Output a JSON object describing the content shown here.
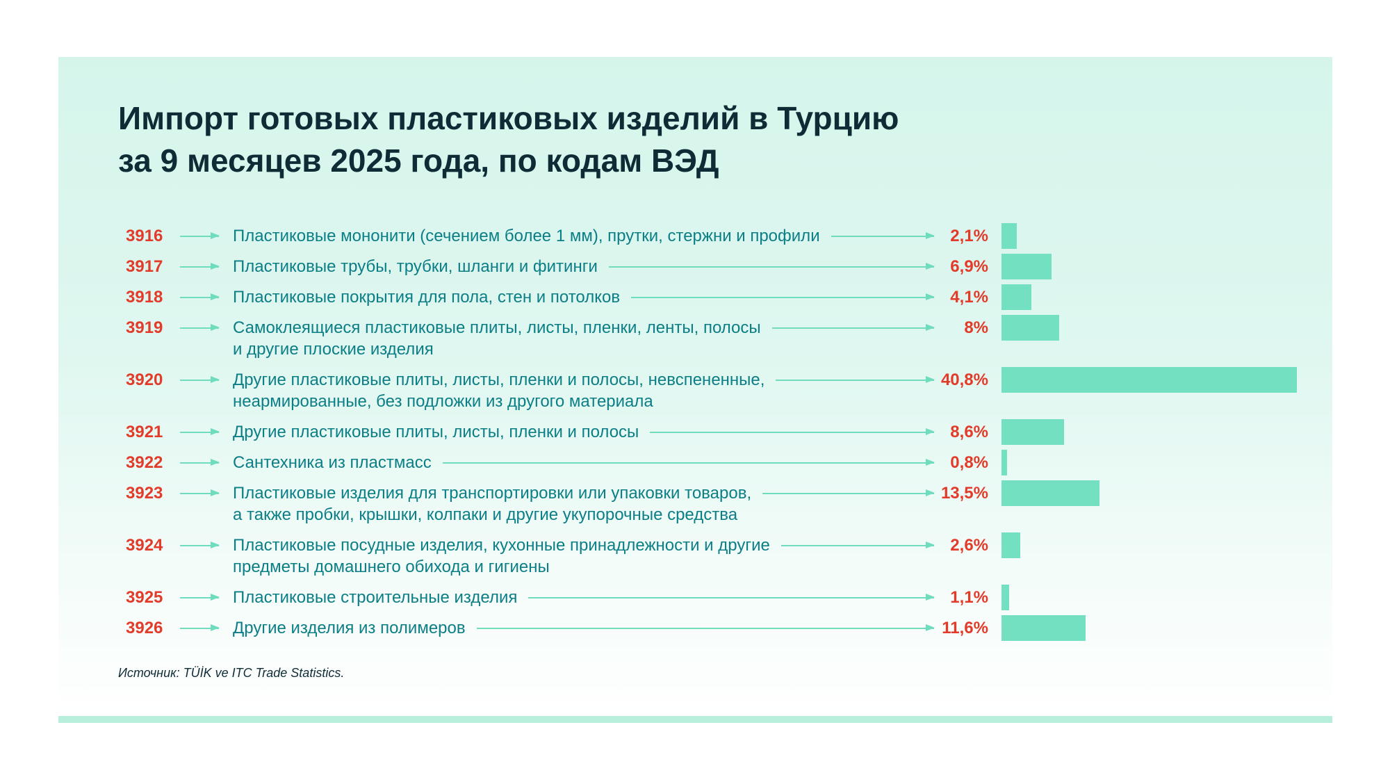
{
  "title": "Импорт готовых пластиковых изделий в Турцию\nза 9 месяцев 2025 года, по кодам ВЭД",
  "source": "Источник: TÜİK ve ITC Trade Statistics.",
  "colors": {
    "bar": "#74e0c2",
    "code": "#e23b2a",
    "text": "#0b7e86",
    "title": "#0f2b36"
  },
  "chart_data": {
    "type": "bar",
    "orientation": "horizontal",
    "title": "Импорт готовых пластиковых изделий в Турцию за 9 месяцев 2025 года, по кодам ВЭД",
    "unit": "%",
    "xlim": [
      0,
      40.8
    ],
    "rows": [
      {
        "code": "3916",
        "desc": "Пластиковые мононити (сечением более 1 мм), прутки, стержни и профили",
        "label": "2,1%",
        "value": 2.1
      },
      {
        "code": "3917",
        "desc": "Пластиковые трубы, трубки, шланги и фитинги",
        "label": "6,9%",
        "value": 6.9
      },
      {
        "code": "3918",
        "desc": "Пластиковые покрытия для пола, стен и потолков",
        "label": "4,1%",
        "value": 4.1
      },
      {
        "code": "3919",
        "desc": "Самоклеящиеся пластиковые плиты, листы, пленки, ленты, полосы\nи другие плоские изделия",
        "label": "8%",
        "value": 8
      },
      {
        "code": "3920",
        "desc": "Другие пластиковые плиты, листы, пленки и полосы, невспененные,\nнеармированные, без подложки из другого материала",
        "label": "40,8%",
        "value": 40.8
      },
      {
        "code": "3921",
        "desc": "Другие пластиковые плиты, листы, пленки и полосы",
        "label": "8,6%",
        "value": 8.6
      },
      {
        "code": "3922",
        "desc": "Сантехника из пластмасс",
        "label": "0,8%",
        "value": 0.8
      },
      {
        "code": "3923",
        "desc": "Пластиковые изделия для транспортировки или упаковки товаров,\nа также пробки, крышки, колпаки и другие укупорочные средства",
        "label": "13,5%",
        "value": 13.5
      },
      {
        "code": "3924",
        "desc": "Пластиковые посудные изделия, кухонные принадлежности и другие\nпредметы домашнего обихода и гигиены",
        "label": "2,6%",
        "value": 2.6
      },
      {
        "code": "3925",
        "desc": "Пластиковые строительные изделия",
        "label": "1,1%",
        "value": 1.1
      },
      {
        "code": "3926",
        "desc": "Другие изделия из полимеров",
        "label": "11,6%",
        "value": 11.6
      }
    ]
  }
}
